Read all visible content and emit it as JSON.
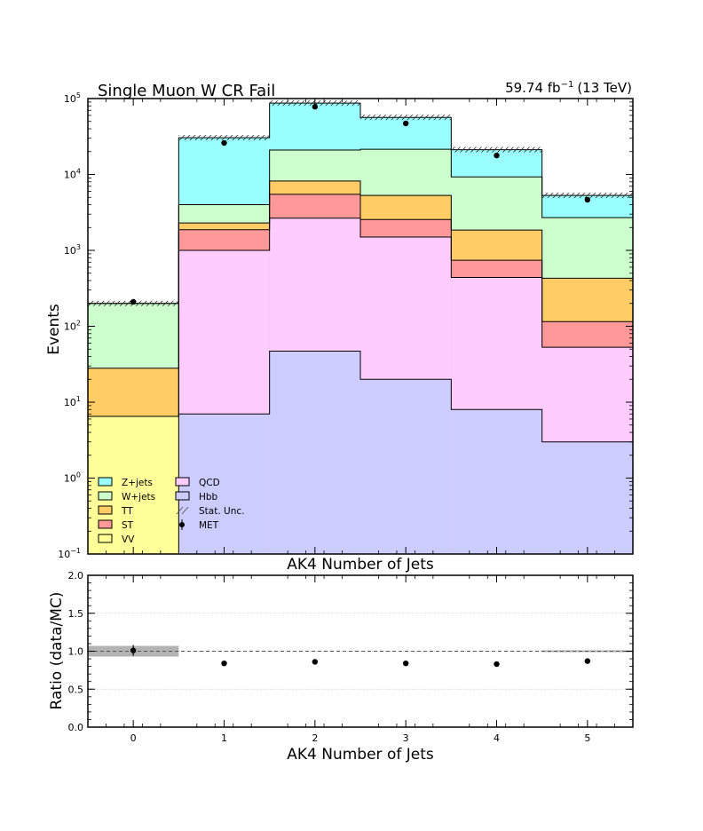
{
  "chart_data": {
    "type": "bar",
    "title": "Single Muon W CR Fail",
    "luminosity": "59.74 fb",
    "luminosity_exp": "−1",
    "energy": "(13 TeV)",
    "main": {
      "xlabel": "AK4 Number of Jets",
      "ylabel": "Events",
      "yscale": "log",
      "ylim": [
        0.1,
        100000
      ],
      "y_tick_labels": [
        "10",
        "10",
        "10",
        "10",
        "10",
        "10",
        "10"
      ],
      "y_tick_exponents": [
        "−1",
        "0",
        "1",
        "2",
        "3",
        "4",
        "5"
      ],
      "y_tick_values": [
        0.1,
        1,
        10,
        100,
        1000,
        10000,
        100000
      ]
    },
    "ratio": {
      "xlabel": "AK4 Number of Jets",
      "ylabel": "Ratio (data/MC)",
      "ylim": [
        0,
        2
      ],
      "y_ticks": [
        "0.0",
        "0.5",
        "1.0",
        "1.5",
        "2.0"
      ],
      "y_tick_values": [
        0,
        0.5,
        1,
        1.5,
        2
      ],
      "grid": true,
      "values": [
        1.01,
        0.84,
        0.86,
        0.84,
        0.83,
        0.87
      ],
      "errors": [
        0.07,
        0.01,
        0.005,
        0.005,
        0.01,
        0.02
      ],
      "unc_band": [
        0.07,
        0.0,
        0.0,
        0.0,
        0.0,
        0.012
      ]
    },
    "x_categories": [
      "0",
      "1",
      "2",
      "3",
      "4",
      "5"
    ],
    "xlim": [
      -0.5,
      5.5
    ],
    "stack_order": [
      "VV",
      "Hbb",
      "QCD",
      "ST",
      "TT",
      "W+jets",
      "Z+jets"
    ],
    "series": [
      {
        "name": "VV",
        "color": "#ffff99",
        "values": [
          6.5,
          0.0,
          0.0,
          0.0,
          0.0,
          0.0
        ]
      },
      {
        "name": "Hbb",
        "color": "#ccccff",
        "values": [
          0.0,
          7.0,
          47,
          20,
          8,
          3
        ]
      },
      {
        "name": "QCD",
        "color": "#ffccff",
        "values": [
          0.0,
          1000,
          2650,
          1500,
          440,
          53
        ]
      },
      {
        "name": "ST",
        "color": "#ff9999",
        "values": [
          3.5,
          1870,
          5470,
          2550,
          740,
          115
        ]
      },
      {
        "name": "TT",
        "color": "#ffcc66",
        "values": [
          28,
          2300,
          8200,
          5300,
          1850,
          430
        ]
      },
      {
        "name": "W+jets",
        "color": "#ccffcc",
        "values": [
          200,
          4000,
          21000,
          21500,
          9300,
          2700
        ]
      },
      {
        "name": "Z+jets",
        "color": "#99ffff",
        "values": [
          200,
          30500,
          87000,
          56500,
          21200,
          5300
        ]
      }
    ],
    "stack_totals": [
      200,
      30500,
      87000,
      56500,
      21200,
      5300
    ],
    "data": {
      "name": "MET",
      "values": [
        210,
        26000,
        78000,
        47000,
        17800,
        4650
      ]
    },
    "legend": {
      "position": "lower-left",
      "col1": [
        "Z+jets",
        "W+jets",
        "TT",
        "ST",
        "VV"
      ],
      "col2": [
        "QCD",
        "Hbb",
        "Stat. Unc.",
        "MET"
      ],
      "colors": {
        "Z+jets": "#99ffff",
        "W+jets": "#ccffcc",
        "TT": "#ffcc66",
        "ST": "#ff9999",
        "VV": "#ffff99",
        "QCD": "#ffccff",
        "Hbb": "#ccccff"
      }
    }
  }
}
